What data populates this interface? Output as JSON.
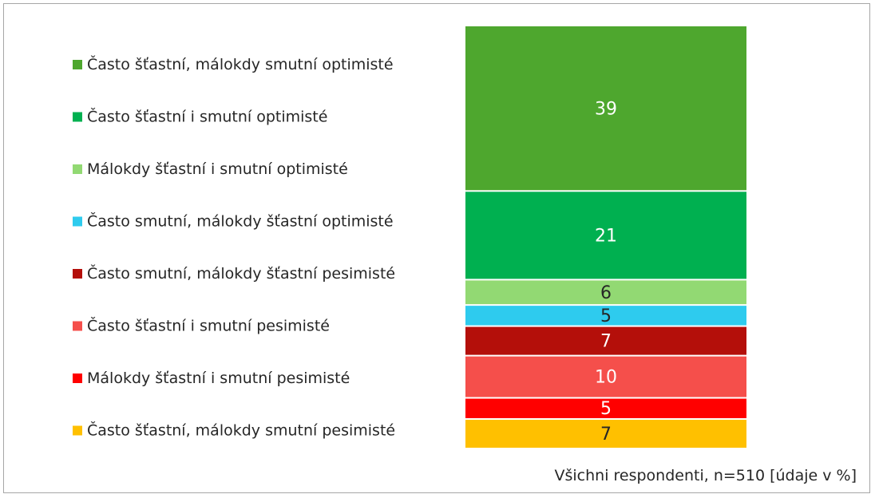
{
  "chart_data": {
    "type": "bar",
    "stacked": true,
    "orientation": "vertical",
    "categories": [
      "Všichni respondenti, n=510 [údaje v %]"
    ],
    "series": [
      {
        "name": "Často šťastní, málokdy smutní optimisté",
        "value": 39,
        "color": "#4ea72e",
        "label_color": "#ffffff"
      },
      {
        "name": "Často šťastní i smutní optimisté",
        "value": 21,
        "color": "#00b050",
        "label_color": "#ffffff"
      },
      {
        "name": "Málokdy šťastní i smutní optimisté",
        "value": 6,
        "color": "#92d973",
        "label_color": "#262626"
      },
      {
        "name": "Často smutní, málokdy šťastní optimisté",
        "value": 5,
        "color": "#2ecbee",
        "label_color": "#262626"
      },
      {
        "name": "Často smutní, málokdy šťastní pesimisté",
        "value": 7,
        "color": "#b40f0a",
        "label_color": "#ffffff"
      },
      {
        "name": "Často šťastní i smutní pesimisté",
        "value": 10,
        "color": "#f54f4b",
        "label_color": "#ffffff"
      },
      {
        "name": "Málokdy šťastní i smutní pesimisté",
        "value": 5,
        "color": "#ff0000",
        "label_color": "#ffffff"
      },
      {
        "name": "Často šťastní, málokdy smutní pesimisté",
        "value": 7,
        "color": "#ffc000",
        "label_color": "#262626"
      }
    ],
    "legend_position": "left",
    "grid": false
  },
  "footnote": "Všichni respondenti, n=510 [údaje v %]"
}
